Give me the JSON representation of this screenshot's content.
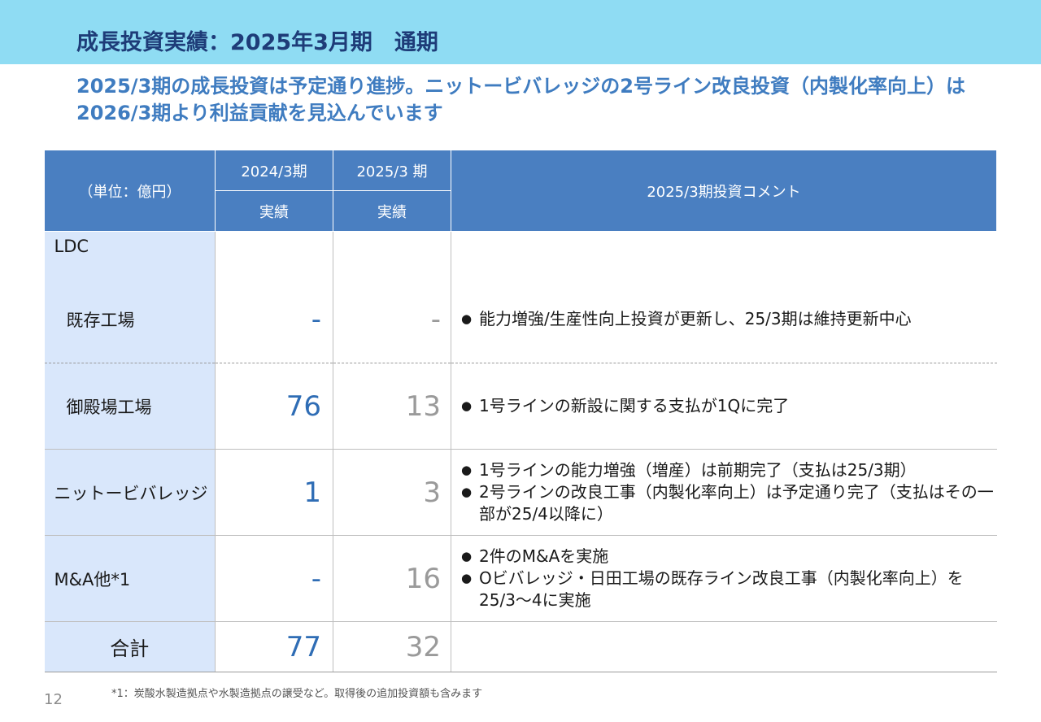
{
  "header": {
    "title": "成長投資実績：2025年3月期　通期"
  },
  "subtitle": "2025/3期の成長投資は予定通り進捗。ニットービバレッジの2号ライン改良投資（内製化率向上）は2026/3期より利益貢献を見込んでいます",
  "table": {
    "unit_label": "（単位：億円）",
    "col_2024": "2024/3期",
    "col_2025": "2025/3 期",
    "col_comment": "2025/3期投資コメント",
    "sub_actual_1": "実績",
    "sub_actual_2": "実績",
    "ldc_label": "LDC",
    "rows": [
      {
        "label": "既存工場",
        "v2024": "-",
        "v2025": "-",
        "comments": [
          "能力増強/生産性向上投資が更新し、25/3期は維持更新中心"
        ]
      },
      {
        "label": "御殿場工場",
        "v2024": "76",
        "v2025": "13",
        "comments": [
          "1号ラインの新設に関する支払が1Qに完了"
        ]
      },
      {
        "label": "ニットービバレッジ",
        "v2024": "1",
        "v2025": "3",
        "comments": [
          "1号ラインの能力増強（増産）は前期完了（支払は25/3期）",
          "2号ラインの改良工事（内製化率向上）は予定通り完了（支払はその一部が25/4以降に）"
        ]
      },
      {
        "label": "M&A他*1",
        "v2024": "-",
        "v2025": "16",
        "comments": [
          "2件のM&Aを実施",
          "Oビバレッジ・日田工場の既存ライン改良工事（内製化率向上）を25/3～4に実施"
        ]
      }
    ],
    "total": {
      "label": "合計",
      "v2024": "77",
      "v2025": "32"
    }
  },
  "bullet_glyph": "●",
  "footnote": "*1：炭酸水製造拠点や水製造拠点の譲受など。取得後の追加投資額も含みます",
  "page_number": "12",
  "colors": {
    "top_bar": "#8fdcf3",
    "title": "#1e3c78",
    "subtitle": "#3f7cc0",
    "table_header": "#4a7fc1",
    "label_cell": "#d9e7fb",
    "value_2024": "#2f6db5",
    "value_2025": "#9a9a9a"
  }
}
